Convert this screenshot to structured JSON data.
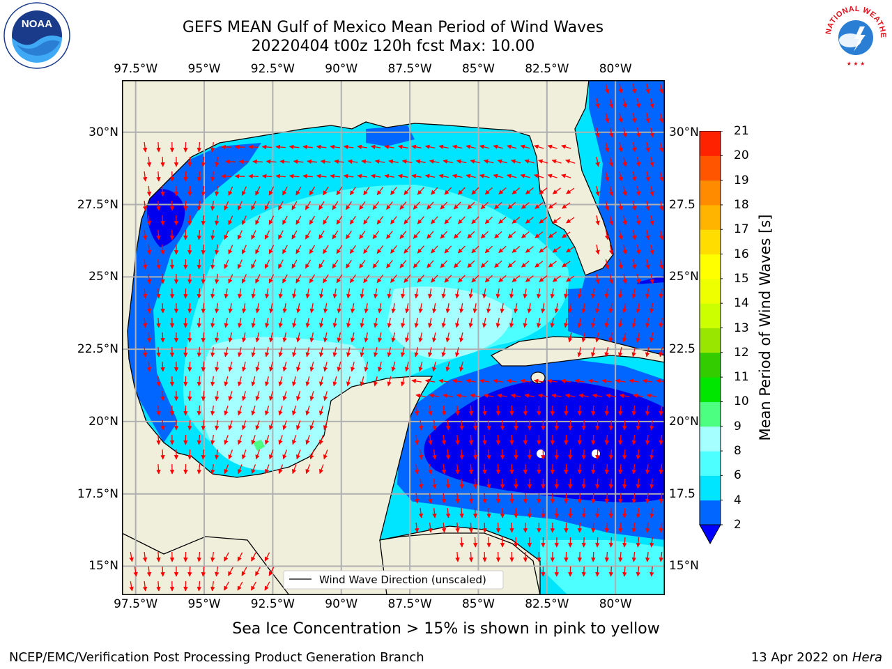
{
  "title": {
    "line1": "GEFS MEAN Gulf of Mexico Mean Period of Wind Waves",
    "line2": "20220404 t00z 120h fcst   Max: 10.00"
  },
  "axes": {
    "lon_labels": [
      "97.5°W",
      "95°W",
      "92.5°W",
      "90°W",
      "87.5°W",
      "85°W",
      "82.5°W",
      "80°W"
    ],
    "lat_labels_left": [
      "30°N",
      "27.5°N",
      "25°N",
      "22.5°N",
      "20°N",
      "17.5°N",
      "15°N"
    ],
    "lat_labels_right": [
      "30°N",
      "27.5",
      "25°N",
      "22.5",
      "20°N",
      "17.5",
      "15°N"
    ],
    "lon_range": [
      -98,
      -78.2
    ],
    "lat_range": [
      14.0,
      31.8
    ]
  },
  "legend": {
    "label": "Wind Wave Direction (unscaled)"
  },
  "colorbar": {
    "label": "Mean Period of Wind Waves [s]",
    "ticks": [
      "2",
      "4",
      "6",
      "8",
      "9",
      "10",
      "11",
      "12",
      "13",
      "14",
      "15",
      "16",
      "17",
      "18",
      "19",
      "20",
      "21"
    ],
    "colors": [
      "#0066ff",
      "#00e5ff",
      "#4dffff",
      "#a6ffff",
      "#4dff80",
      "#00e600",
      "#33cc00",
      "#99e600",
      "#ccff00",
      "#eeff00",
      "#ffff00",
      "#ffdd00",
      "#ffb400",
      "#ff8c00",
      "#ff5500",
      "#ff2200"
    ],
    "extend_color": "#0000ff"
  },
  "chart_data": {
    "type": "heatmap",
    "variable": "Mean Period of Wind Waves [s]",
    "max_value": 10.0,
    "levels": [
      2,
      4,
      6,
      8,
      9,
      10,
      11,
      12,
      13,
      14,
      15,
      16,
      17,
      18,
      19,
      20,
      21
    ],
    "arrow_color": "#ff0000"
  },
  "colors": {
    "land": "#efefdc",
    "grid": "#b0b0b0",
    "deep_blue": "#0000ee",
    "blue": "#0066ff",
    "cyan": "#00e5ff",
    "light_cyan": "#4dffff",
    "pale_cyan": "#a6ffff",
    "green": "#4dff80"
  },
  "note": "Sea Ice Concentration > 15% is shown in pink to yellow",
  "footer": {
    "left": "NCEP/EMC/Verification Post Processing Product Generation Branch",
    "right_date": "13 Apr 2022 on",
    "right_host": "Hera"
  },
  "logos": {
    "noaa_text": "NOAA",
    "nws_text": "NATIONAL WEATHER SERVICE"
  }
}
